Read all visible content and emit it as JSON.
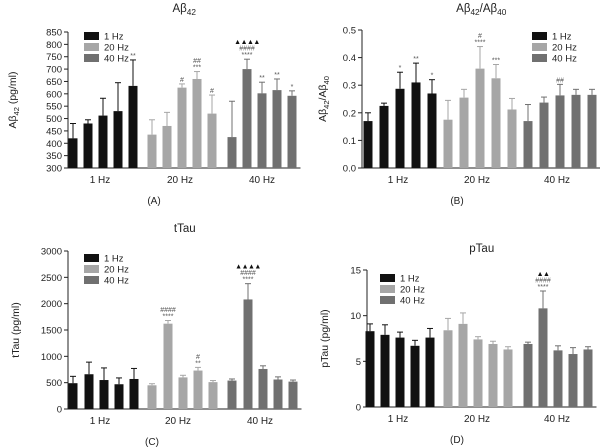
{
  "figure": {
    "colors": {
      "dark": "#111111",
      "light": "#a6a6a6",
      "mid": "#707070",
      "axis": "#222222"
    }
  },
  "chart_data": [
    {
      "type": "bar",
      "panel_label": "(A)",
      "title": "Aβ42",
      "title_parts": {
        "main": "Aβ",
        "sub": "42"
      },
      "ylabel": "Aβ42 (pg/ml)",
      "ylabel_parts": [
        {
          "t": "Aβ"
        },
        {
          "t": "42",
          "sub": true
        },
        {
          "t": " (pg/ml)"
        }
      ],
      "ylim": [
        300,
        850
      ],
      "yticks": [
        "300",
        "350",
        "400",
        "450",
        "500",
        "550",
        "600",
        "650",
        "700",
        "750",
        "800",
        "850"
      ],
      "ytick_values": [
        300,
        350,
        400,
        450,
        500,
        550,
        600,
        650,
        700,
        750,
        800,
        850
      ],
      "groups": [
        "1 Hz",
        "20 Hz",
        "40 Hz"
      ],
      "group_colors": [
        "dark",
        "light",
        "mid"
      ],
      "legend": [
        "1 Hz",
        "20 Hz",
        "40 Hz"
      ],
      "legend_position": "top-left",
      "bars_per_group": [
        [
          {
            "v": 420,
            "e": 60
          },
          {
            "v": 480,
            "e": 15
          },
          {
            "v": 512,
            "e": 70
          },
          {
            "v": 530,
            "e": 115
          },
          {
            "v": 632,
            "e": 105,
            "ann": [
              "**"
            ]
          }
        ],
        [
          {
            "v": 435,
            "e": 60
          },
          {
            "v": 470,
            "e": 55
          },
          {
            "v": 625,
            "e": 15,
            "ann": [
              "#"
            ]
          },
          {
            "v": 660,
            "e": 30,
            "ann": [
              "***",
              "##"
            ]
          },
          {
            "v": 520,
            "e": 75,
            "ann": [
              "#"
            ]
          }
        ],
        [
          {
            "v": 425,
            "e": 145
          },
          {
            "v": 700,
            "e": 40,
            "ann": [
              "****",
              "####",
              "▲▲▲▲"
            ]
          },
          {
            "v": 602,
            "e": 45,
            "ann": [
              "**"
            ]
          },
          {
            "v": 615,
            "e": 45,
            "ann": [
              "**"
            ]
          },
          {
            "v": 592,
            "e": 20,
            "ann": [
              "*"
            ]
          }
        ]
      ]
    },
    {
      "type": "bar",
      "panel_label": "(B)",
      "title": "Aβ42/Aβ40",
      "title_parts": [
        {
          "t": "Aβ"
        },
        {
          "t": "42",
          "sub": true
        },
        {
          "t": "/Aβ"
        },
        {
          "t": "40",
          "sub": true
        }
      ],
      "ylabel": "Aβ42/Aβ40",
      "ylabel_parts": [
        {
          "t": "Aβ"
        },
        {
          "t": "42",
          "sub": true
        },
        {
          "t": "/Aβ"
        },
        {
          "t": "40",
          "sub": true
        }
      ],
      "ylim": [
        0,
        0.5
      ],
      "yticks": [
        "0.0",
        "0.1",
        "0.2",
        "0.3",
        "0.4",
        "0.5"
      ],
      "ytick_values": [
        0,
        0.1,
        0.2,
        0.3,
        0.4,
        0.5
      ],
      "groups": [
        "1 Hz",
        "20 Hz",
        "40 Hz"
      ],
      "group_colors": [
        "dark",
        "light",
        "mid"
      ],
      "legend": [
        "1 Hz",
        "20 Hz",
        "40 Hz"
      ],
      "legend_position": "top-right",
      "bars_per_group": [
        [
          {
            "v": 0.17,
            "e": 0.03
          },
          {
            "v": 0.225,
            "e": 0.01
          },
          {
            "v": 0.287,
            "e": 0.06,
            "ann": [
              "*"
            ]
          },
          {
            "v": 0.31,
            "e": 0.07,
            "ann": [
              "**"
            ]
          },
          {
            "v": 0.27,
            "e": 0.05,
            "ann": [
              "*"
            ]
          }
        ],
        [
          {
            "v": 0.175,
            "e": 0.07
          },
          {
            "v": 0.255,
            "e": 0.03
          },
          {
            "v": 0.36,
            "e": 0.08,
            "ann": [
              "****",
              "#"
            ]
          },
          {
            "v": 0.325,
            "e": 0.05,
            "ann": [
              "***"
            ]
          },
          {
            "v": 0.212,
            "e": 0.04
          }
        ],
        [
          {
            "v": 0.17,
            "e": 0.06
          },
          {
            "v": 0.237,
            "e": 0.02
          },
          {
            "v": 0.263,
            "e": 0.04,
            "ann": [
              "##"
            ]
          },
          {
            "v": 0.265,
            "e": 0.02
          },
          {
            "v": 0.265,
            "e": 0.02
          }
        ]
      ]
    },
    {
      "type": "bar",
      "panel_label": "(C)",
      "title": "tTau",
      "ylabel": "tTau (pg/ml)",
      "ylim": [
        0,
        3000
      ],
      "yticks": [
        "0",
        "500",
        "1000",
        "1500",
        "2000",
        "2500",
        "3000"
      ],
      "ytick_values": [
        0,
        500,
        1000,
        1500,
        2000,
        2500,
        3000
      ],
      "groups": [
        "1 Hz",
        "20 Hz",
        "40 Hz"
      ],
      "group_colors": [
        "dark",
        "light",
        "mid"
      ],
      "legend": [
        "1 Hz",
        "20 Hz",
        "40 Hz"
      ],
      "legend_position": "top-left",
      "bars_per_group": [
        [
          {
            "v": 490,
            "e": 130
          },
          {
            "v": 660,
            "e": 230
          },
          {
            "v": 550,
            "e": 230
          },
          {
            "v": 470,
            "e": 120
          },
          {
            "v": 570,
            "e": 200
          }
        ],
        [
          {
            "v": 450,
            "e": 30
          },
          {
            "v": 1620,
            "e": 60,
            "ann": [
              "****",
              "####"
            ]
          },
          {
            "v": 600,
            "e": 40
          },
          {
            "v": 730,
            "e": 60,
            "ann": [
              "**",
              "#"
            ]
          },
          {
            "v": 510,
            "e": 30
          }
        ],
        [
          {
            "v": 540,
            "e": 30
          },
          {
            "v": 2080,
            "e": 300,
            "ann": [
              "****",
              "####",
              "▲▲▲▲"
            ]
          },
          {
            "v": 760,
            "e": 60
          },
          {
            "v": 560,
            "e": 50
          },
          {
            "v": 520,
            "e": 30
          }
        ]
      ]
    },
    {
      "type": "bar",
      "panel_label": "(D)",
      "title": "pTau",
      "ylabel": "pTau (pg/ml)",
      "ylim": [
        0,
        15
      ],
      "yticks": [
        "0",
        "5",
        "10",
        "15"
      ],
      "ytick_values": [
        0,
        5,
        10,
        15
      ],
      "groups": [
        "1 Hz",
        "20 Hz",
        "40 Hz"
      ],
      "group_colors": [
        "dark",
        "light",
        "mid"
      ],
      "legend": [
        "1 Hz",
        "20 Hz",
        "40 Hz"
      ],
      "legend_position": "top-left",
      "bars_per_group": [
        [
          {
            "v": 8.3,
            "e": 0.8
          },
          {
            "v": 7.9,
            "e": 1.1
          },
          {
            "v": 7.6,
            "e": 0.6
          },
          {
            "v": 6.7,
            "e": 0.6
          },
          {
            "v": 7.6,
            "e": 1.0
          }
        ],
        [
          {
            "v": 8.4,
            "e": 1.3
          },
          {
            "v": 9.1,
            "e": 1.2
          },
          {
            "v": 7.4,
            "e": 0.3
          },
          {
            "v": 6.9,
            "e": 0.3
          },
          {
            "v": 6.3,
            "e": 0.3
          }
        ],
        [
          {
            "v": 6.9,
            "e": 0.2
          },
          {
            "v": 10.8,
            "e": 1.9,
            "ann": [
              "****",
              "####",
              "▲▲"
            ]
          },
          {
            "v": 6.2,
            "e": 0.5
          },
          {
            "v": 5.8,
            "e": 0.7
          },
          {
            "v": 6.3,
            "e": 0.3
          }
        ]
      ]
    }
  ]
}
